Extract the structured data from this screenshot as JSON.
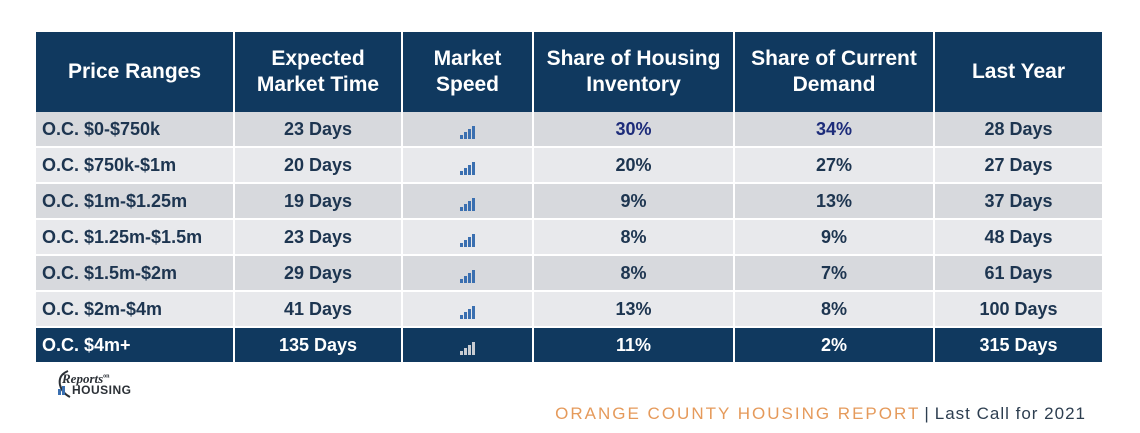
{
  "table": {
    "headers": [
      [
        "Price Ranges"
      ],
      [
        "Expected",
        "Market Time"
      ],
      [
        "Market",
        "Speed"
      ],
      [
        "Share of Housing",
        "Inventory"
      ],
      [
        "Share of Current",
        "Demand"
      ],
      [
        "Last Year"
      ]
    ],
    "rows": [
      {
        "range": "O.C. $0-$750k",
        "market_time": "23 Days",
        "speed_icon": "signal-bars-icon",
        "inventory": "30%",
        "demand": "34%",
        "last_year": "28 Days"
      },
      {
        "range": "O.C. $750k-$1m",
        "market_time": "20 Days",
        "speed_icon": "signal-bars-icon",
        "inventory": "20%",
        "demand": "27%",
        "last_year": "27 Days"
      },
      {
        "range": "O.C. $1m-$1.25m",
        "market_time": "19 Days",
        "speed_icon": "signal-bars-icon",
        "inventory": "9%",
        "demand": "13%",
        "last_year": "37 Days"
      },
      {
        "range": "O.C. $1.25m-$1.5m",
        "market_time": "23 Days",
        "speed_icon": "signal-bars-icon",
        "inventory": "8%",
        "demand": "9%",
        "last_year": "48 Days"
      },
      {
        "range": "O.C. $1.5m-$2m",
        "market_time": "29 Days",
        "speed_icon": "signal-bars-icon",
        "inventory": "8%",
        "demand": "7%",
        "last_year": "61 Days"
      },
      {
        "range": "O.C. $2m-$4m",
        "market_time": "41 Days",
        "speed_icon": "signal-bars-icon",
        "inventory": "13%",
        "demand": "8%",
        "last_year": "100 Days"
      },
      {
        "range": "O.C. $4m+",
        "market_time": "135 Days",
        "speed_icon": "signal-bars-icon",
        "inventory": "11%",
        "demand": "2%",
        "last_year": "315 Days"
      }
    ]
  },
  "logo": {
    "line1": "Reports",
    "line1_small": "on",
    "line2": "HOUSING"
  },
  "footer": {
    "report_name": "ORANGE COUNTY HOUSING REPORT",
    "separator": "|",
    "subtitle": "Last Call for 2021"
  },
  "colors": {
    "header_bg": "#10395f",
    "row_odd": "#d7d9dd",
    "row_even": "#e8e9ec",
    "text_dark": "#1d3550",
    "icon_blue": "#3a6fb0",
    "footer_orange": "#e59a5b"
  }
}
